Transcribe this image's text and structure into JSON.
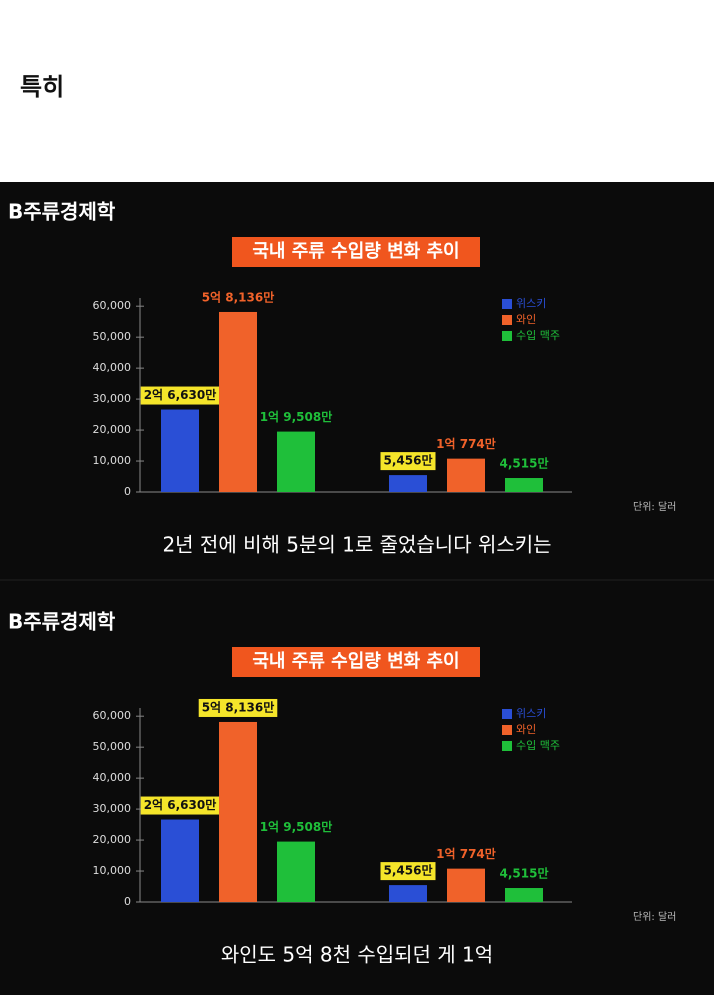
{
  "post_text": "특히",
  "chart_data": [
    {
      "type": "bar",
      "brand": "B주류경제학",
      "title": "국내 주류 수입량 변화 추이",
      "categories": [
        null,
        null
      ],
      "series": [
        {
          "name": "위스키",
          "color": "#2a4fd6",
          "values": [
            26630,
            5456
          ],
          "value_labels": [
            "2억 6,630만",
            "5,456만"
          ],
          "highlight": [
            true,
            true
          ]
        },
        {
          "name": "와인",
          "color": "#f0622a",
          "values": [
            58136,
            10774
          ],
          "value_labels": [
            "5억 8,136만",
            "1억 774만"
          ],
          "highlight": [
            false,
            false
          ]
        },
        {
          "name": "수입 맥주",
          "color": "#1fbf3a",
          "values": [
            19508,
            4515
          ],
          "value_labels": [
            "1억 9,508만",
            "4,515만"
          ],
          "highlight": [
            false,
            false
          ]
        }
      ],
      "ylim": [
        0,
        62000
      ],
      "yticks": [
        0,
        {
          "value": 10000,
          "label": "10,000"
        },
        {
          "value": 20000,
          "label": "20,000"
        },
        {
          "value": 30000,
          "label": "30,000"
        },
        {
          "value": 40000,
          "label": "40,000"
        },
        {
          "value": 50000,
          "label": "50,000"
        },
        {
          "value": 60000,
          "label": "60,000"
        }
      ],
      "unit_note": "단위: 달러",
      "legend": "upper right",
      "caption": "2년 전에 비해 5분의 1로 줄었습니다 위스키는"
    },
    {
      "type": "bar",
      "brand": "B주류경제학",
      "title": "국내 주류 수입량 변화 추이",
      "categories": [
        null,
        null
      ],
      "series": [
        {
          "name": "위스키",
          "color": "#2a4fd6",
          "values": [
            26630,
            5456
          ],
          "value_labels": [
            "2억 6,630만",
            "5,456만"
          ],
          "highlight": [
            true,
            true
          ]
        },
        {
          "name": "와인",
          "color": "#f0622a",
          "values": [
            58136,
            10774
          ],
          "value_labels": [
            "5억 8,136만",
            "1억 774만"
          ],
          "highlight": [
            true,
            false
          ]
        },
        {
          "name": "수입 맥주",
          "color": "#1fbf3a",
          "values": [
            19508,
            4515
          ],
          "value_labels": [
            "1억 9,508만",
            "4,515만"
          ],
          "highlight": [
            false,
            false
          ]
        }
      ],
      "ylim": [
        0,
        62000
      ],
      "yticks": [
        0,
        {
          "value": 10000,
          "label": "10,000"
        },
        {
          "value": 20000,
          "label": "20,000"
        },
        {
          "value": 30000,
          "label": "30,000"
        },
        {
          "value": 40000,
          "label": "40,000"
        },
        {
          "value": 50000,
          "label": "50,000"
        },
        {
          "value": 60000,
          "label": "60,000"
        }
      ],
      "unit_note": "단위: 달러",
      "legend": "upper right",
      "caption": "와인도 5억 8천 수입되던 게 1억"
    }
  ]
}
